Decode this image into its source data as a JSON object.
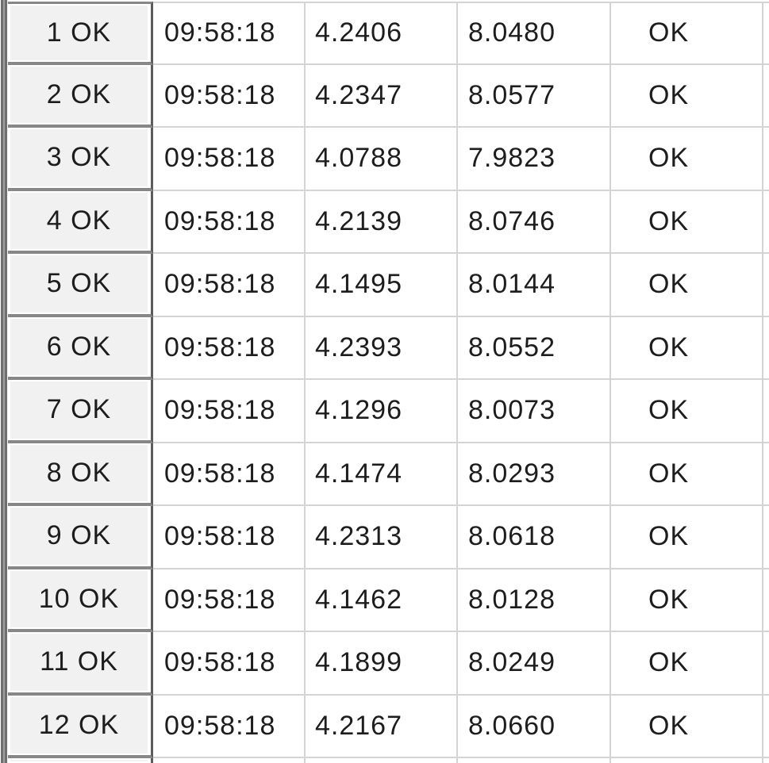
{
  "table": {
    "description": "measurement-log-grid",
    "columns": [
      "row-header",
      "time",
      "value-1",
      "value-2",
      "status"
    ],
    "rows": [
      {
        "label": "1 OK",
        "time": "09:58:18",
        "v1": "4.2406",
        "v2": "8.0480",
        "status": "OK"
      },
      {
        "label": "2 OK",
        "time": "09:58:18",
        "v1": "4.2347",
        "v2": "8.0577",
        "status": "OK"
      },
      {
        "label": "3 OK",
        "time": "09:58:18",
        "v1": "4.0788",
        "v2": "7.9823",
        "status": "OK"
      },
      {
        "label": "4 OK",
        "time": "09:58:18",
        "v1": "4.2139",
        "v2": "8.0746",
        "status": "OK"
      },
      {
        "label": "5 OK",
        "time": "09:58:18",
        "v1": "4.1495",
        "v2": "8.0144",
        "status": "OK"
      },
      {
        "label": "6 OK",
        "time": "09:58:18",
        "v1": "4.2393",
        "v2": "8.0552",
        "status": "OK"
      },
      {
        "label": "7 OK",
        "time": "09:58:18",
        "v1": "4.1296",
        "v2": "8.0073",
        "status": "OK"
      },
      {
        "label": "8 OK",
        "time": "09:58:18",
        "v1": "4.1474",
        "v2": "8.0293",
        "status": "OK"
      },
      {
        "label": "9 OK",
        "time": "09:58:18",
        "v1": "4.2313",
        "v2": "8.0618",
        "status": "OK"
      },
      {
        "label": "10 OK",
        "time": "09:58:18",
        "v1": "4.1462",
        "v2": "8.0128",
        "status": "OK"
      },
      {
        "label": "11 OK",
        "time": "09:58:18",
        "v1": "4.1899",
        "v2": "8.0249",
        "status": "OK"
      },
      {
        "label": "12 OK",
        "time": "09:58:18",
        "v1": "4.2167",
        "v2": "8.0660",
        "status": "OK"
      }
    ]
  },
  "colors": {
    "header_cell_bg": "#f1f1f1",
    "header_separator": "#878787",
    "header_column_border": "#5c5c5c",
    "grid_line": "#d4d4d4",
    "left_edge": "#6f6f6f",
    "text": "#1d1d1d"
  }
}
